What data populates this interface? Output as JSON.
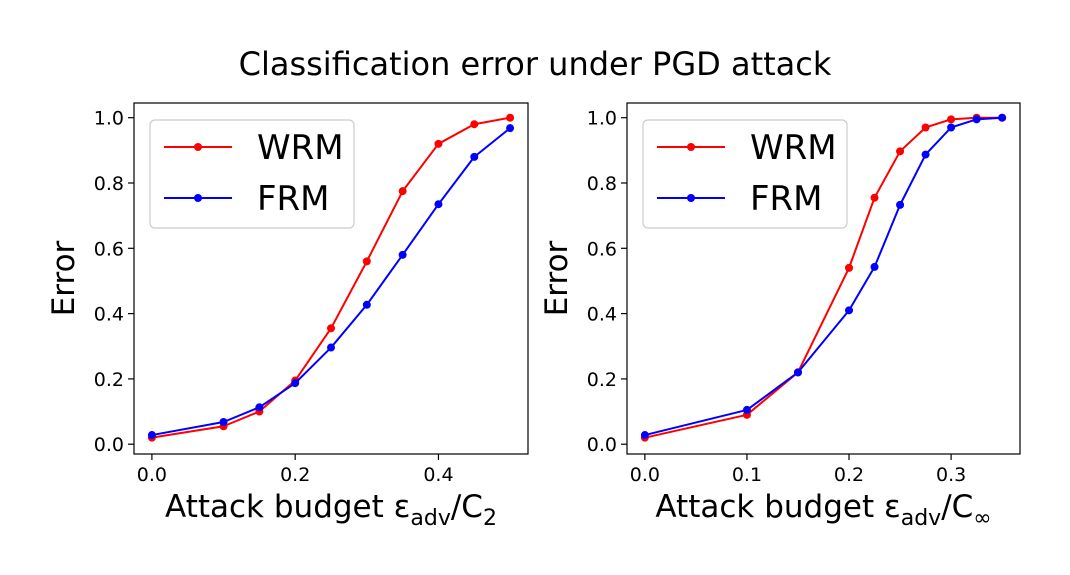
{
  "figure_title": "Classification error under PGD attack",
  "colors": {
    "WRM": "#ff0000",
    "FRM": "#0000ff"
  },
  "chart_data": [
    {
      "type": "line",
      "id": "l2",
      "xlabel_prefix": "Attack budget ε",
      "xlabel_sub": "adv",
      "xlabel_mid": "/C",
      "xlabel_sub2": "2",
      "ylabel": "Error",
      "xlim": [
        -0.025,
        0.525
      ],
      "ylim": [
        -0.03,
        1.045
      ],
      "xticks": [
        0.0,
        0.2,
        0.4
      ],
      "xtick_labels": [
        "0.0",
        "0.2",
        "0.4"
      ],
      "yticks": [
        0.0,
        0.2,
        0.4,
        0.6,
        0.8,
        1.0
      ],
      "ytick_labels": [
        "0.0",
        "0.2",
        "0.4",
        "0.6",
        "0.8",
        "1.0"
      ],
      "legend_position": "upper-left",
      "series": [
        {
          "name": "WRM",
          "x": [
            0.0,
            0.1,
            0.15,
            0.2,
            0.25,
            0.3,
            0.35,
            0.4,
            0.45,
            0.5
          ],
          "y": [
            0.02,
            0.055,
            0.1,
            0.195,
            0.355,
            0.56,
            0.775,
            0.92,
            0.98,
            1.0
          ]
        },
        {
          "name": "FRM",
          "x": [
            0.0,
            0.1,
            0.15,
            0.2,
            0.25,
            0.3,
            0.35,
            0.4,
            0.45,
            0.5
          ],
          "y": [
            0.028,
            0.068,
            0.113,
            0.187,
            0.296,
            0.427,
            0.58,
            0.735,
            0.88,
            0.968
          ]
        }
      ]
    },
    {
      "type": "line",
      "id": "linf",
      "xlabel_prefix": "Attack budget ε",
      "xlabel_sub": "adv",
      "xlabel_mid": "/C",
      "xlabel_sub2": "∞",
      "ylabel": "Error",
      "xlim": [
        -0.0175,
        0.3675
      ],
      "ylim": [
        -0.03,
        1.045
      ],
      "xticks": [
        0.0,
        0.1,
        0.2,
        0.3
      ],
      "xtick_labels": [
        "0.0",
        "0.1",
        "0.2",
        "0.3"
      ],
      "yticks": [
        0.0,
        0.2,
        0.4,
        0.6,
        0.8,
        1.0
      ],
      "ytick_labels": [
        "0.0",
        "0.2",
        "0.4",
        "0.6",
        "0.8",
        "1.0"
      ],
      "legend_position": "upper-left",
      "series": [
        {
          "name": "WRM",
          "x": [
            0.0,
            0.1,
            0.15,
            0.2,
            0.225,
            0.25,
            0.275,
            0.3,
            0.325,
            0.35
          ],
          "y": [
            0.02,
            0.09,
            0.22,
            0.54,
            0.755,
            0.897,
            0.97,
            0.995,
            1.0,
            1.0
          ]
        },
        {
          "name": "FRM",
          "x": [
            0.0,
            0.1,
            0.15,
            0.2,
            0.225,
            0.25,
            0.275,
            0.3,
            0.325,
            0.35
          ],
          "y": [
            0.028,
            0.105,
            0.22,
            0.41,
            0.543,
            0.733,
            0.887,
            0.97,
            0.995,
            1.0
          ]
        }
      ]
    }
  ]
}
